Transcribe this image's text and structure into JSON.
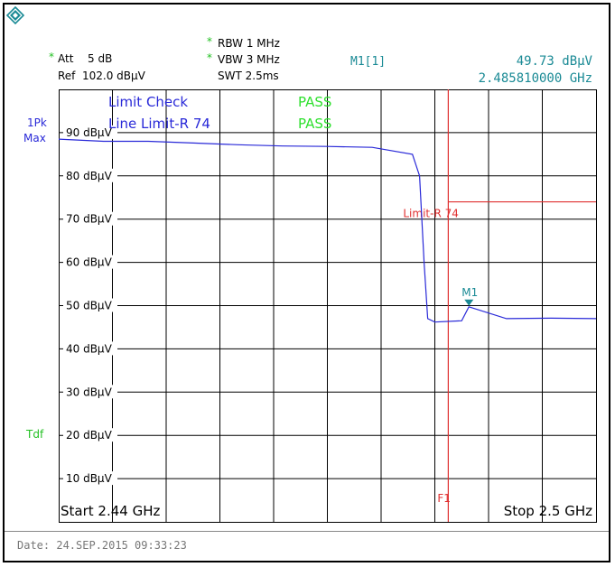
{
  "header": {
    "att_label": "Att",
    "att_value": "5 dB",
    "ref_label": "Ref",
    "ref_value": "102.0 dBµV",
    "rbw": "RBW 1 MHz",
    "vbw": "VBW 3 MHz",
    "swt": "SWT 2.5ms",
    "marker_label": "M1[1]",
    "marker_level": "49.73 dBµV",
    "marker_freq": "2.485810000 GHz",
    "star": "*"
  },
  "side": {
    "detector_line1": "1Pk",
    "detector_line2": "Max",
    "tdf": "Tdf"
  },
  "limit_check": {
    "label": "Limit Check",
    "line_label": "Line Limit-R 74",
    "result1": "PASS",
    "result2": "PASS"
  },
  "footer": {
    "start": "Start 2.44 GHz",
    "stop": "Stop 2.5 GHz",
    "date": "Date: 24.SEP.2015  09:33:23"
  },
  "colors": {
    "trace": "#2929d8",
    "limit": "#e03030",
    "marker": "#1a8a95",
    "grid": "#000000"
  },
  "chart_data": {
    "type": "line",
    "xlim": [
      2.44,
      2.5
    ],
    "ylim": [
      0,
      100
    ],
    "x_unit": "GHz",
    "y_unit": "dBµV",
    "y_ticks": [
      90,
      80,
      70,
      60,
      50,
      40,
      30,
      20,
      10
    ],
    "y_tick_labels": [
      "90 dBµV",
      "80 dBµV",
      "70 dBµV",
      "60 dBµV",
      "50 dBµV",
      "40 dBµV",
      "30 dBµV",
      "20 dBµV",
      "10 dBµV"
    ],
    "series": [
      {
        "x": [
          2.44,
          2.445,
          2.45,
          2.455,
          2.46,
          2.465,
          2.47,
          2.475,
          2.4795,
          2.4803,
          2.4808,
          2.4812,
          2.482,
          2.485,
          2.4858,
          2.49,
          2.495,
          2.5
        ],
        "y": [
          88.5,
          88.0,
          88.0,
          87.6,
          87.2,
          86.9,
          86.8,
          86.6,
          85.0,
          80.0,
          60.0,
          47.0,
          46.2,
          46.5,
          49.73,
          47.0,
          47.1,
          47.0
        ]
      }
    ],
    "limit_line": {
      "name": "Limit-R 74",
      "value": 74,
      "x_start": 2.4835
    },
    "frequency_line": {
      "name": "F1",
      "x": 2.4835
    },
    "marker": {
      "name": "M1",
      "x": 2.48581,
      "y": 49.73
    }
  }
}
